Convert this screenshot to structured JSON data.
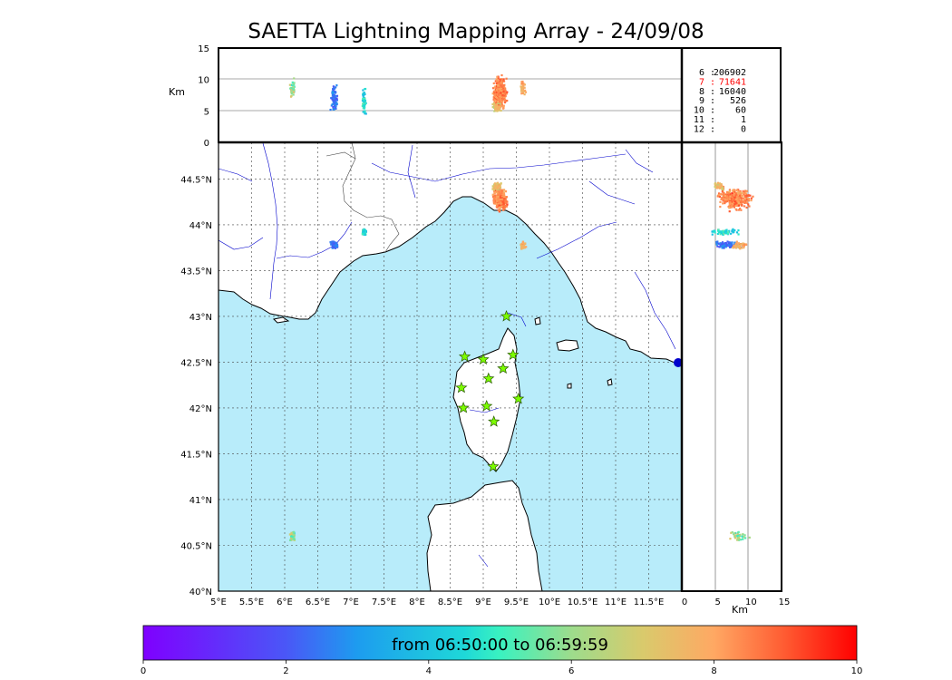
{
  "title": "SAETTA Lightning Mapping Array - 24/09/08",
  "altitude_unit": "Km",
  "alt_ticks": [
    "15",
    "10",
    "5",
    "0"
  ],
  "side_ticks": [
    "0",
    "5",
    "10",
    "15"
  ],
  "lat_ticks": [
    "44.5°N",
    "44°N",
    "43.5°N",
    "43°N",
    "42.5°N",
    "42°N",
    "41.5°N",
    "41°N",
    "40.5°N",
    "40°N"
  ],
  "lon_ticks": [
    "5°E",
    "5.5°E",
    "6°E",
    "6.5°E",
    "7°E",
    "7.5°E",
    "8°E",
    "8.5°E",
    "9°E",
    "9.5°E",
    "10°E",
    "10.5°E",
    "11°E",
    "11.5°E"
  ],
  "station_counts": [
    {
      "label": "6 :",
      "value": "206902",
      "color": "#000000"
    },
    {
      "label": "7 :",
      "value": "71641",
      "color": "#ff0000"
    },
    {
      "label": "8 :",
      "value": "16040",
      "color": "#000000"
    },
    {
      "label": "9 :",
      "value": "526",
      "color": "#000000"
    },
    {
      "label": "10 :",
      "value": "60",
      "color": "#000000"
    },
    {
      "label": "11 :",
      "value": "1",
      "color": "#000000"
    },
    {
      "label": "12 :",
      "value": "0",
      "color": "#000000"
    }
  ],
  "colorbar": {
    "label": "from 06:50:00 to 06:59:59",
    "ticks": [
      "0",
      "2",
      "4",
      "6",
      "8",
      "10"
    ]
  },
  "colors": {
    "sea": "#b8ecfa",
    "grid": "#555555",
    "river": "#0000cc",
    "station_fill": "#7cfc00"
  },
  "chart_data": {
    "type": "scatter",
    "description_units": "lon (°E), lat (°N), altitude (Km), time (minutes)",
    "lon_range": [
      5,
      12
    ],
    "lat_range": [
      40,
      44.9
    ],
    "alt_range": [
      0,
      15
    ],
    "time_range": [
      0,
      10
    ],
    "stations": [
      {
        "lon": 9.35,
        "lat": 43.0
      },
      {
        "lon": 8.72,
        "lat": 42.56
      },
      {
        "lon": 9.0,
        "lat": 42.53
      },
      {
        "lon": 9.45,
        "lat": 42.58
      },
      {
        "lon": 9.3,
        "lat": 42.43
      },
      {
        "lon": 9.08,
        "lat": 42.32
      },
      {
        "lon": 8.67,
        "lat": 42.22
      },
      {
        "lon": 9.53,
        "lat": 42.1
      },
      {
        "lon": 8.7,
        "lat": 42.0
      },
      {
        "lon": 9.05,
        "lat": 42.02
      },
      {
        "lon": 9.16,
        "lat": 41.85
      },
      {
        "lon": 9.15,
        "lat": 41.36
      }
    ],
    "clusters": [
      {
        "lon": 9.25,
        "lat": 44.28,
        "alt": 8.0,
        "lon_spread": 0.13,
        "lat_spread": 0.14,
        "alt_spread": 3.0,
        "time": 8.5,
        "time_spread": 1.2,
        "n": 380
      },
      {
        "lon": 6.75,
        "lat": 43.78,
        "alt": 7.0,
        "lon_spread": 0.07,
        "lat_spread": 0.05,
        "alt_spread": 2.5,
        "time": 2.4,
        "time_spread": 1.0,
        "n": 90
      },
      {
        "lon": 7.2,
        "lat": 43.92,
        "alt": 6.5,
        "lon_spread": 0.05,
        "lat_spread": 0.04,
        "alt_spread": 2.5,
        "time": 4.5,
        "time_spread": 1.5,
        "n": 60
      },
      {
        "lon": 9.6,
        "lat": 43.78,
        "alt": 8.5,
        "lon_spread": 0.05,
        "lat_spread": 0.05,
        "alt_spread": 1.5,
        "time": 8.0,
        "time_spread": 1.0,
        "n": 40
      },
      {
        "lon": 6.12,
        "lat": 40.6,
        "alt": 8.5,
        "lon_spread": 0.05,
        "lat_spread": 0.08,
        "alt_spread": 2.0,
        "time": 6.0,
        "time_spread": 2.5,
        "n": 40
      },
      {
        "lon": 9.2,
        "lat": 44.42,
        "alt": 5.5,
        "lon_spread": 0.08,
        "lat_spread": 0.05,
        "alt_spread": 1.0,
        "time": 7.5,
        "time_spread": 2.0,
        "n": 70
      }
    ]
  }
}
